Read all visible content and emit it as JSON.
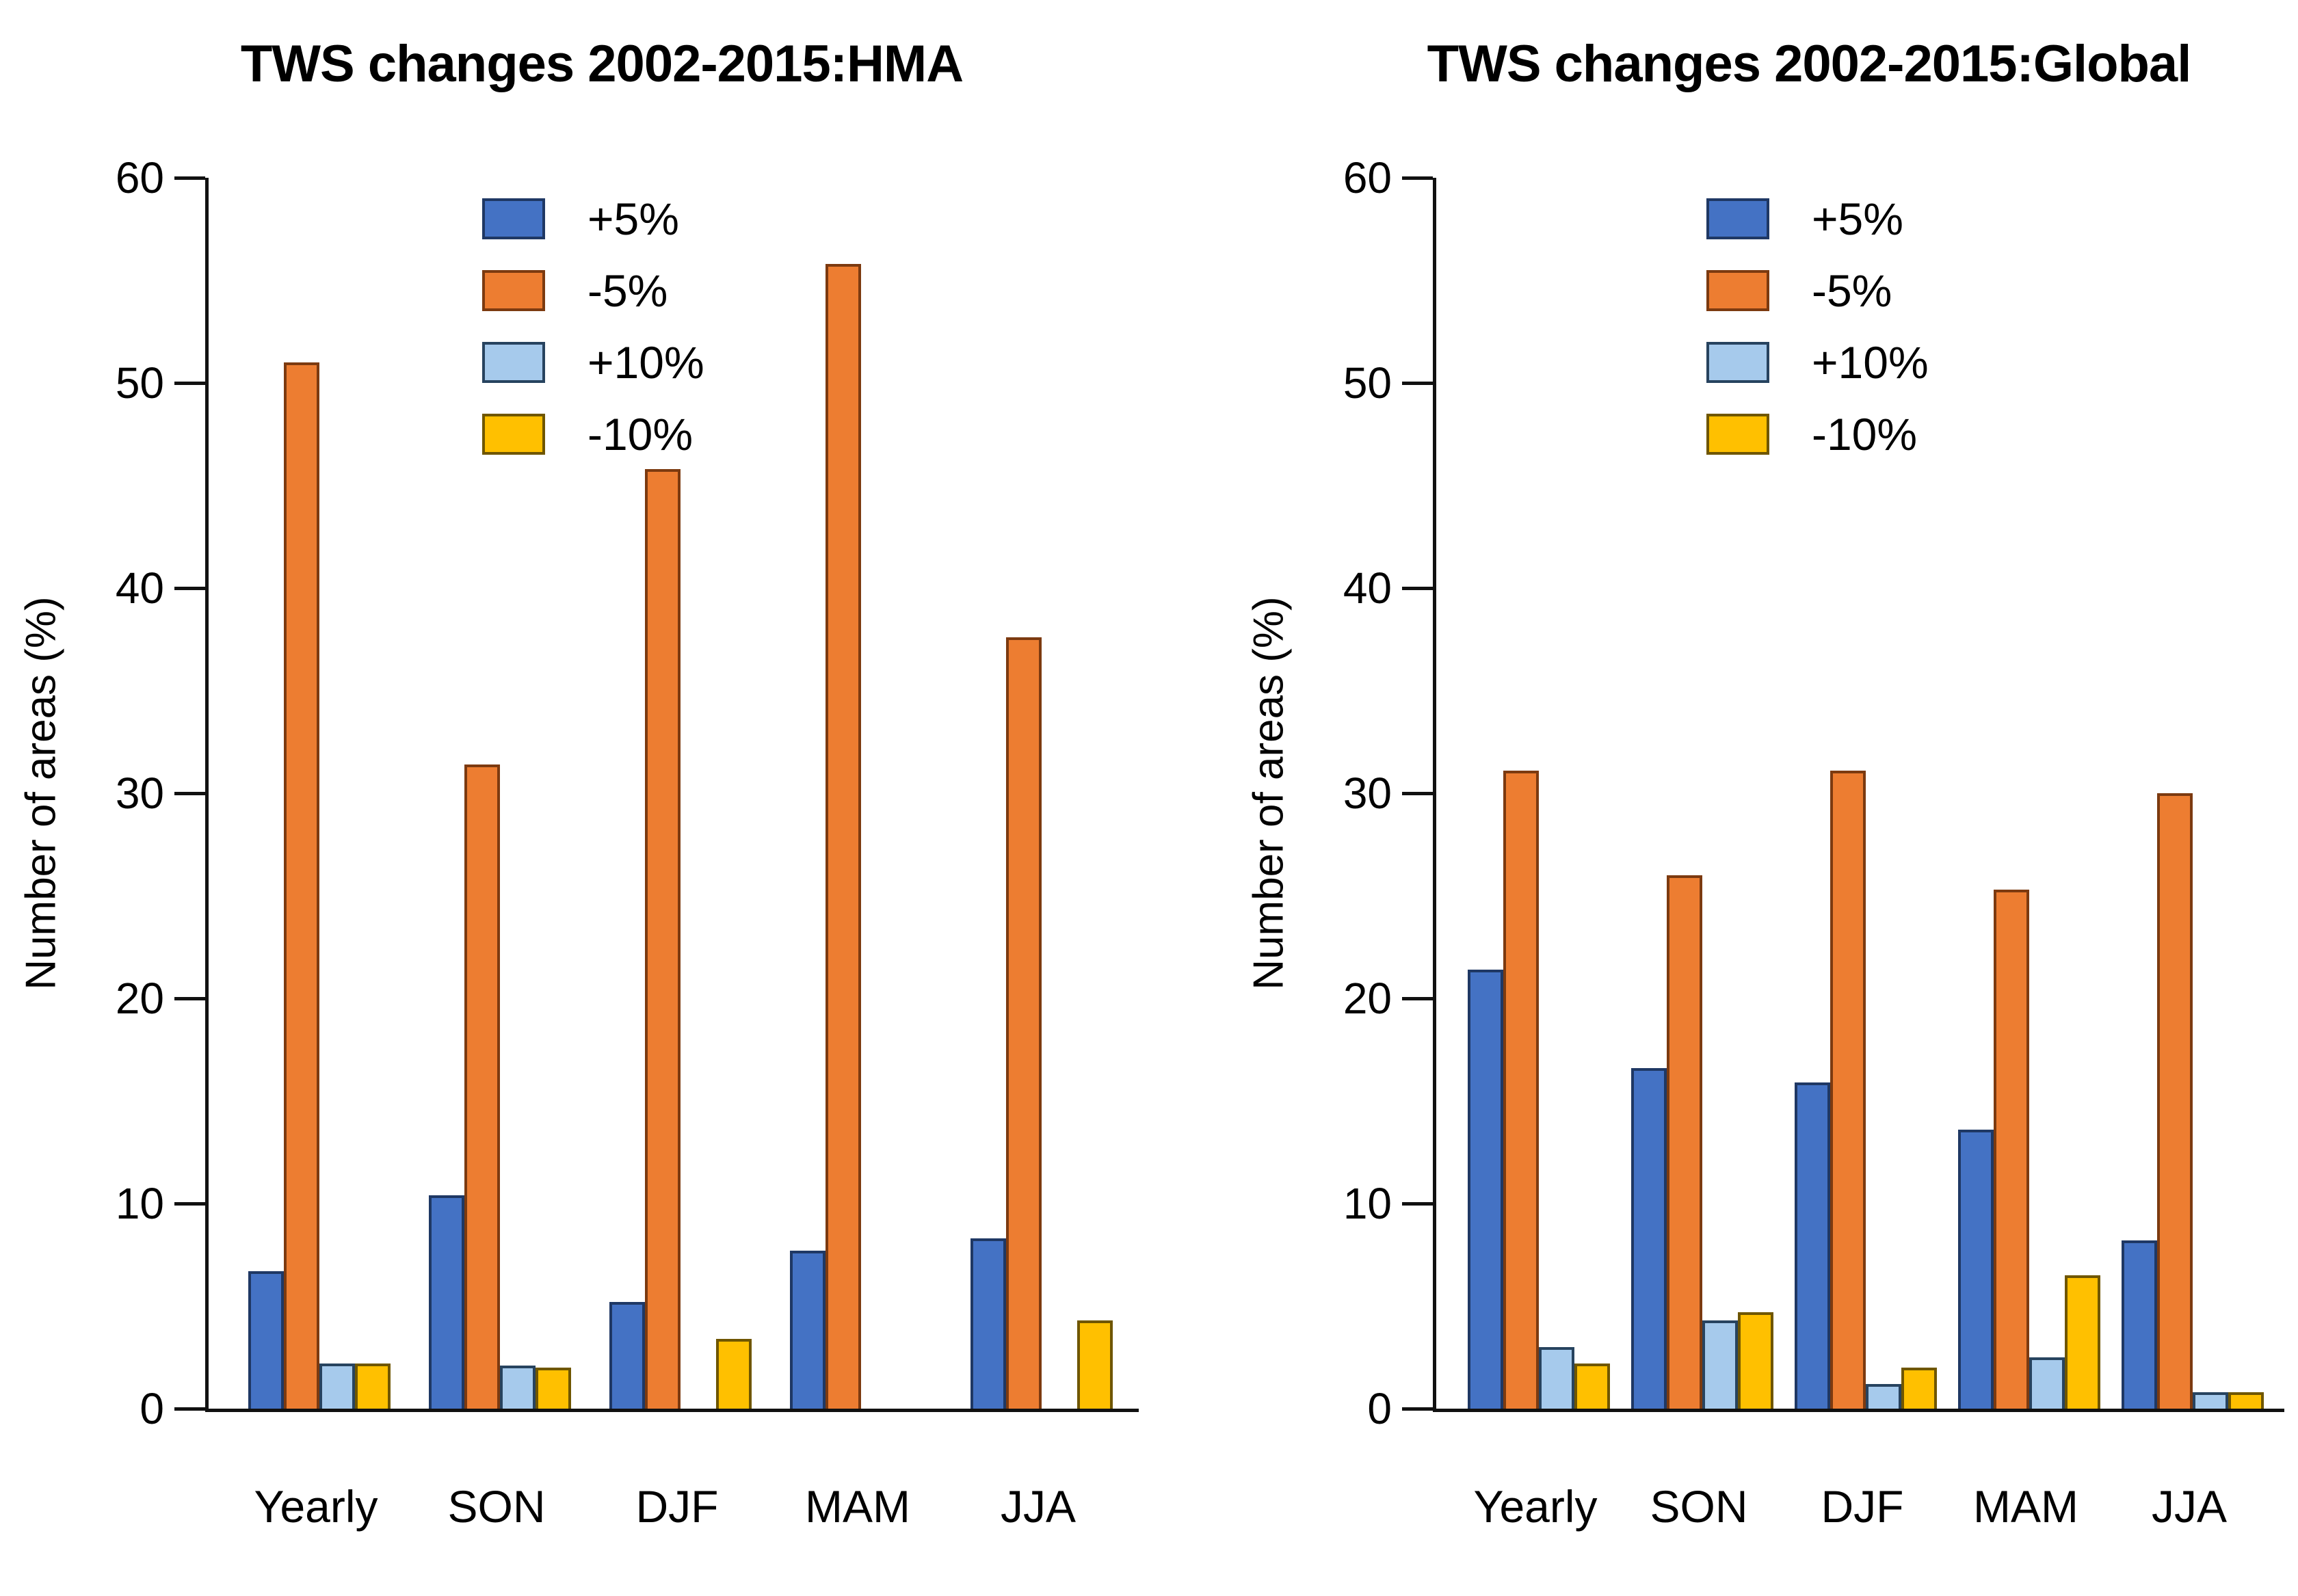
{
  "figure": {
    "background": "#ffffff"
  },
  "chart_data": [
    {
      "type": "bar",
      "title": "TWS changes 2002-2015:HMA",
      "ylabel": "Number of areas (%)",
      "xlabel": "",
      "ylim": [
        0,
        60
      ],
      "yticks": [
        0,
        10,
        20,
        30,
        40,
        50,
        60
      ],
      "grid": false,
      "legend_position": "upper-center-inside",
      "categories": [
        "Yearly",
        "SON",
        "DJF",
        "MAM",
        "JJA"
      ],
      "series": [
        {
          "name": "+5%",
          "color": "#4472C4",
          "border": "#1F3864",
          "values": [
            6.7,
            10.4,
            5.2,
            7.7,
            8.3
          ]
        },
        {
          "name": "-5%",
          "color": "#ED7D31",
          "border": "#7C3A10",
          "values": [
            51.0,
            31.4,
            45.8,
            55.8,
            37.6
          ]
        },
        {
          "name": "+10%",
          "color": "#A6CAEC",
          "border": "#27435F",
          "values": [
            2.2,
            2.1,
            0,
            0,
            0
          ]
        },
        {
          "name": "-10%",
          "color": "#FFC000",
          "border": "#6F5600",
          "values": [
            2.2,
            2.0,
            3.4,
            0,
            4.3
          ]
        }
      ]
    },
    {
      "type": "bar",
      "title": "TWS changes 2002-2015:Global",
      "ylabel": "Number of areas (%)",
      "xlabel": "",
      "ylim": [
        0,
        60
      ],
      "yticks": [
        0,
        10,
        20,
        30,
        40,
        50,
        60
      ],
      "grid": false,
      "legend_position": "upper-center-inside",
      "categories": [
        "Yearly",
        "SON",
        "DJF",
        "MAM",
        "JJA"
      ],
      "series": [
        {
          "name": "+5%",
          "color": "#4472C4",
          "border": "#1F3864",
          "values": [
            21.4,
            16.6,
            15.9,
            13.6,
            8.2
          ]
        },
        {
          "name": "-5%",
          "color": "#ED7D31",
          "border": "#7C3A10",
          "values": [
            31.1,
            26.0,
            31.1,
            25.3,
            30.0
          ]
        },
        {
          "name": "+10%",
          "color": "#A6CAEC",
          "border": "#27435F",
          "values": [
            3.0,
            4.3,
            1.2,
            2.5,
            0.8
          ]
        },
        {
          "name": "-10%",
          "color": "#FFC000",
          "border": "#6F5600",
          "values": [
            2.2,
            4.7,
            2.0,
            6.5,
            0.8
          ]
        }
      ]
    }
  ]
}
